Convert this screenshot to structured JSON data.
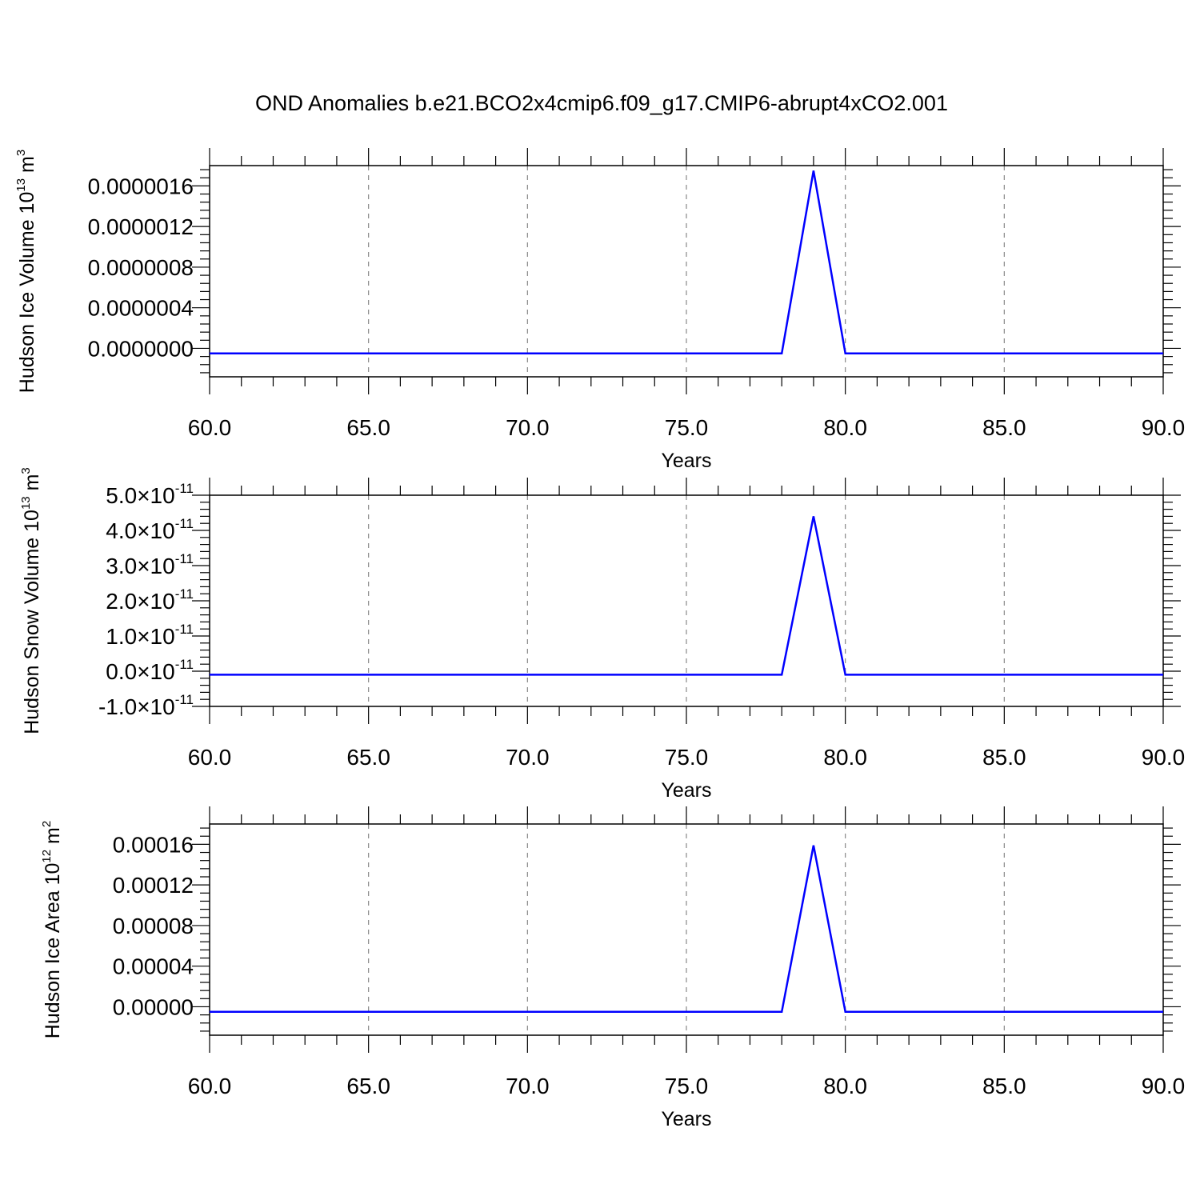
{
  "title": "OND Anomalies b.e21.BCO2x4cmip6.f09_g17.CMIP6-abrupt4xCO2.001",
  "colors": {
    "line": "#0000ff",
    "frame": "#000000",
    "grid": "#888888"
  },
  "chart_data": [
    {
      "type": "line",
      "ylabel": "Hudson Ice Volume 10^13 m^3",
      "ylabel_parts": {
        "base": "Hudson Ice Volume 10",
        "exp1": "13",
        "mid": " m",
        "exp2": "3"
      },
      "xlabel": "Years",
      "xlim": [
        60,
        90
      ],
      "ylim": [
        -2.8e-07,
        1.8e-06
      ],
      "xticks": [
        60,
        65,
        70,
        75,
        80,
        85,
        90
      ],
      "xtick_labels": [
        "60.0",
        "65.0",
        "70.0",
        "75.0",
        "80.0",
        "85.0",
        "90.0"
      ],
      "yticks": [
        0,
        4e-07,
        8e-07,
        1.2e-06,
        1.6e-06
      ],
      "ytick_labels": [
        "0.0000000",
        "0.0000004",
        "0.0000008",
        "0.0000012",
        "0.0000016"
      ],
      "vgrid": [
        65,
        70,
        75,
        80,
        85
      ],
      "x": [
        60,
        78,
        79,
        80,
        90
      ],
      "y": [
        -5e-08,
        -5e-08,
        1.75e-06,
        -5e-08,
        -5e-08
      ]
    },
    {
      "type": "line",
      "ylabel": "Hudson Snow Volume 10^13 m^3",
      "ylabel_parts": {
        "base": "Hudson Snow Volume 10",
        "exp1": "13",
        "mid": " m",
        "exp2": "3"
      },
      "xlabel": "Years",
      "xlim": [
        60,
        90
      ],
      "ylim": [
        -1e-11,
        5e-11
      ],
      "xticks": [
        60,
        65,
        70,
        75,
        80,
        85,
        90
      ],
      "xtick_labels": [
        "60.0",
        "65.0",
        "70.0",
        "75.0",
        "80.0",
        "85.0",
        "90.0"
      ],
      "yticks": [
        -1e-11,
        0,
        1e-11,
        2e-11,
        3e-11,
        4e-11,
        5e-11
      ],
      "ytick_labels": [
        {
          "mant": "-1.0",
          "base": "10",
          "exp": "-11"
        },
        {
          "mant": "0.0",
          "base": "10",
          "exp": "-11"
        },
        {
          "mant": "1.0",
          "base": "10",
          "exp": "-11"
        },
        {
          "mant": "2.0",
          "base": "10",
          "exp": "-11"
        },
        {
          "mant": "3.0",
          "base": "10",
          "exp": "-11"
        },
        {
          "mant": "4.0",
          "base": "10",
          "exp": "-11"
        },
        {
          "mant": "5.0",
          "base": "10",
          "exp": "-11"
        }
      ],
      "vgrid": [
        65,
        70,
        75,
        80,
        85
      ],
      "x": [
        60,
        78,
        79,
        80,
        90
      ],
      "y": [
        -1e-12,
        -1e-12,
        4.4e-11,
        -1e-12,
        -1e-12
      ]
    },
    {
      "type": "line",
      "ylabel": "Hudson Ice Area 10^12 m^2",
      "ylabel_parts": {
        "base": "Hudson Ice Area 10",
        "exp1": "12",
        "mid": " m",
        "exp2": "2"
      },
      "xlabel": "Years",
      "xlim": [
        60,
        90
      ],
      "ylim": [
        -2.8e-05,
        0.00018
      ],
      "xticks": [
        60,
        65,
        70,
        75,
        80,
        85,
        90
      ],
      "xtick_labels": [
        "60.0",
        "65.0",
        "70.0",
        "75.0",
        "80.0",
        "85.0",
        "90.0"
      ],
      "yticks": [
        0,
        4e-05,
        8e-05,
        0.00012,
        0.00016
      ],
      "ytick_labels": [
        "0.00000",
        "0.00004",
        "0.00008",
        "0.00012",
        "0.00016"
      ],
      "vgrid": [
        65,
        70,
        75,
        80,
        85
      ],
      "x": [
        60,
        78,
        79,
        80,
        90
      ],
      "y": [
        -5e-06,
        -5e-06,
        0.000159,
        -5e-06,
        -5e-06
      ]
    }
  ]
}
